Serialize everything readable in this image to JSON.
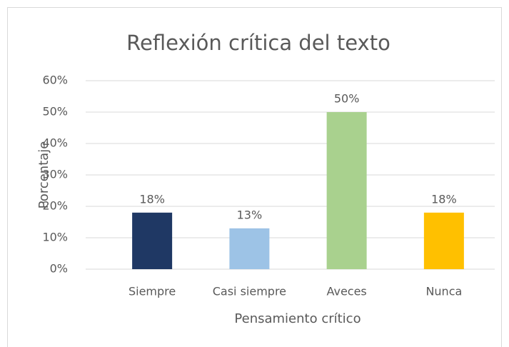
{
  "chart_data": {
    "type": "bar",
    "title": "Reflexión crítica del texto",
    "x_label": "Pensamiento crítico",
    "y_label": "Porcentaje",
    "categories": [
      "Siempre",
      "Casi siempre",
      "Aveces",
      "Nunca"
    ],
    "values": [
      18,
      13,
      50,
      18
    ],
    "value_labels": [
      "18%",
      "13%",
      "50%",
      "18%"
    ],
    "colors": [
      "#1f3864",
      "#9dc3e6",
      "#a9d18e",
      "#ffc000"
    ],
    "ylim": [
      0,
      60
    ],
    "yticks": [
      {
        "value": 0,
        "label": "0%"
      },
      {
        "value": 10,
        "label": "10%"
      },
      {
        "value": 20,
        "label": "20%"
      },
      {
        "value": 30,
        "label": "30%"
      },
      {
        "value": 40,
        "label": "40%"
      },
      {
        "value": 50,
        "label": "50%"
      },
      {
        "value": 60,
        "label": "60%"
      }
    ],
    "grid": true
  }
}
